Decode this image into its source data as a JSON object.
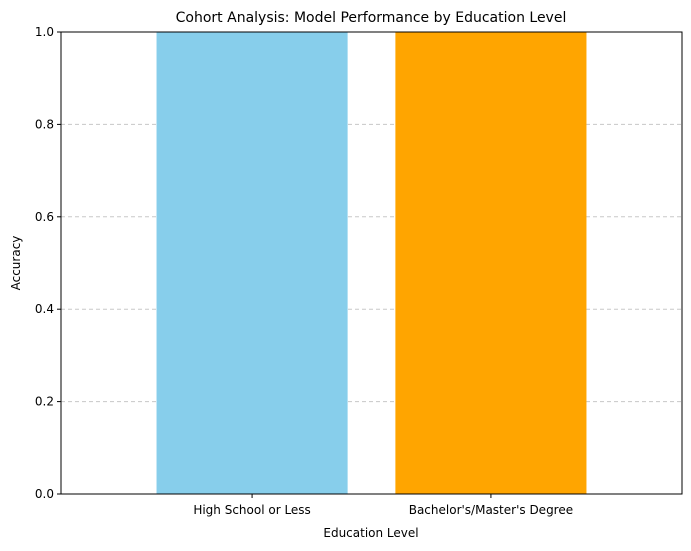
{
  "chart_data": {
    "type": "bar",
    "title": "Cohort Analysis: Model Performance by Education Level",
    "xlabel": "Education Level",
    "ylabel": "Accuracy",
    "categories": [
      "High School or Less",
      "Bachelor's/Master's Degree"
    ],
    "values": [
      1.0,
      1.0
    ],
    "colors": [
      "#87CEEB",
      "#FFA500"
    ],
    "ylim": [
      0,
      1.0
    ],
    "yticks": [
      0.0,
      0.2,
      0.4,
      0.6,
      0.8,
      1.0
    ],
    "ytick_labels": [
      "0.0",
      "0.2",
      "0.4",
      "0.6",
      "0.8",
      "1.0"
    ],
    "grid": "y-dashed",
    "grid_color": "#c8c8c8",
    "legend": "none"
  }
}
